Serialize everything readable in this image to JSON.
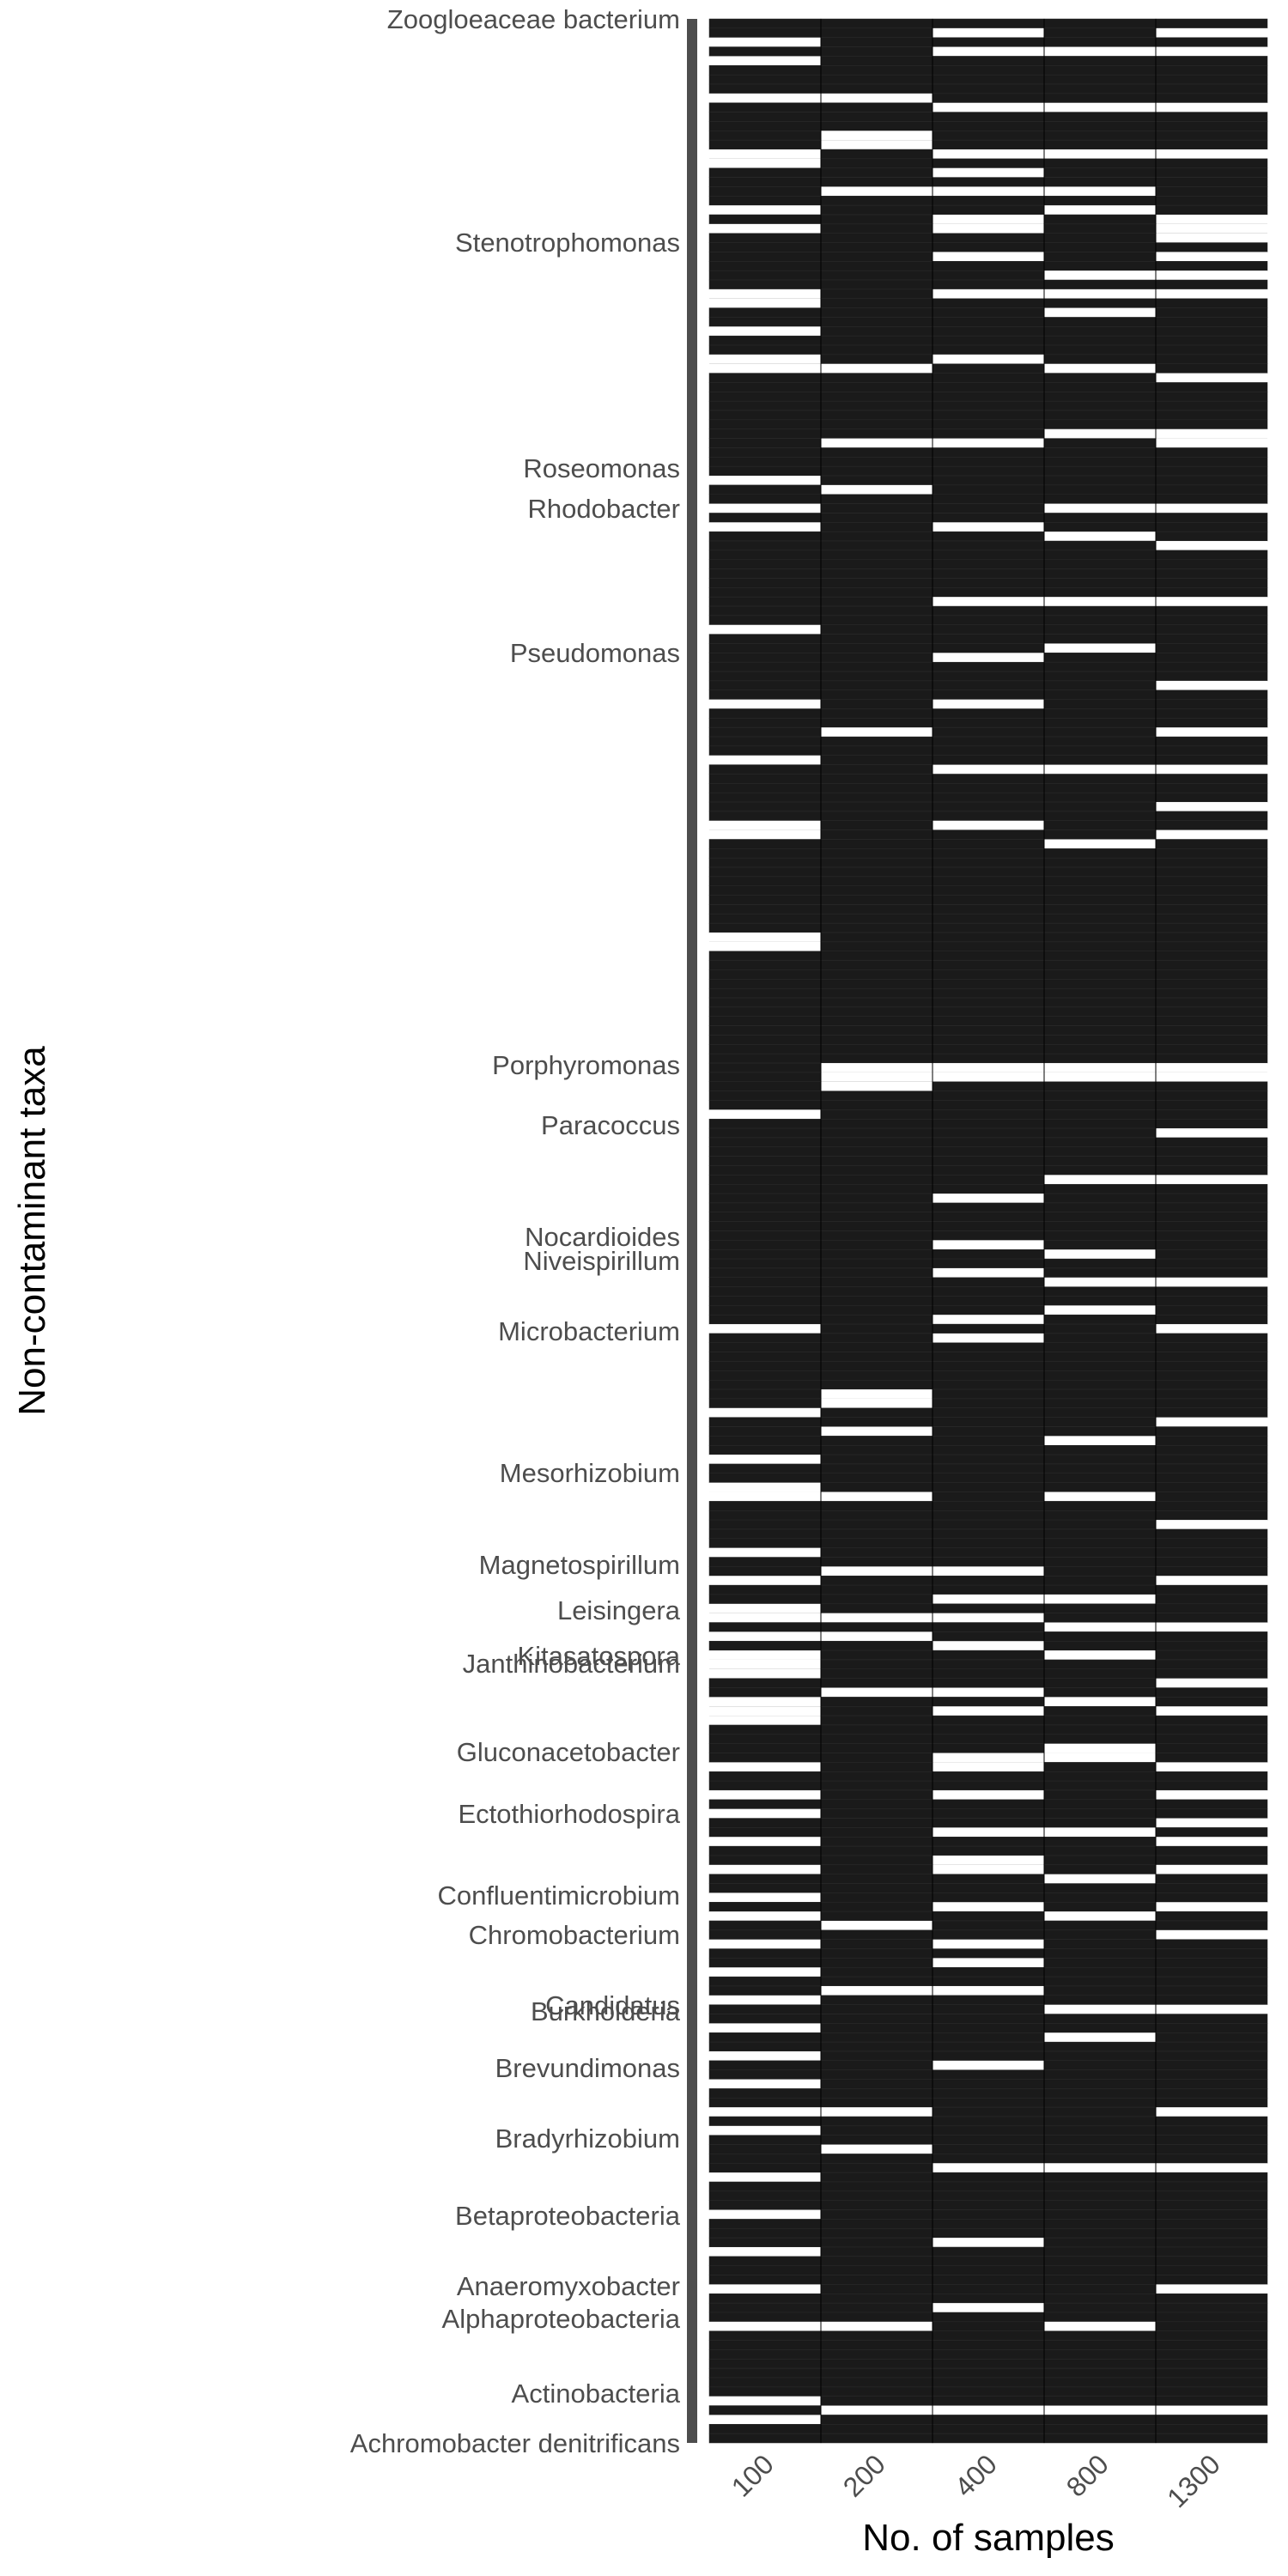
{
  "chart_data": {
    "type": "heatmap",
    "xlabel": "No. of samples",
    "ylabel": "Non-contaminant taxa",
    "categories": [
      "100",
      "200",
      "400",
      "800",
      "1300"
    ],
    "row_count": 260,
    "fill_colors": {
      "present": "#1a1a1a",
      "absent": "#ffffff",
      "cell_border": "#2e2e2e",
      "axis_bar": "#4d4d4d",
      "text": "#4d4d4d"
    },
    "legend": "none",
    "grid": false,
    "absent_rows_by_category": {
      "100": [
        2,
        4,
        8,
        14,
        15,
        20,
        22,
        29,
        30,
        33,
        36,
        37,
        49,
        52,
        54,
        65,
        73,
        79,
        86,
        87,
        98,
        99,
        117,
        140,
        149,
        154,
        157,
        158,
        164,
        167,
        170,
        171,
        173,
        175,
        176,
        177,
        180,
        181,
        182,
        187,
        190,
        192,
        195,
        198,
        201,
        203,
        206,
        209,
        212,
        215,
        218,
        221,
        224,
        226,
        231,
        235,
        239,
        243,
        247,
        255,
        257
      ],
      "200": [
        8,
        12,
        13,
        18,
        37,
        45,
        50,
        76,
        112,
        113,
        114,
        147,
        148,
        151,
        158,
        166,
        171,
        173,
        179,
        204,
        211,
        224,
        228,
        247,
        256
      ],
      "400": [
        1,
        3,
        9,
        14,
        16,
        18,
        21,
        22,
        25,
        29,
        36,
        45,
        54,
        62,
        68,
        73,
        80,
        86,
        112,
        113,
        126,
        131,
        134,
        139,
        141,
        166,
        169,
        171,
        174,
        179,
        181,
        186,
        187,
        190,
        194,
        197,
        198,
        202,
        206,
        208,
        211,
        219,
        230,
        238,
        245,
        256
      ],
      "800": [
        3,
        9,
        14,
        18,
        20,
        27,
        29,
        31,
        37,
        44,
        52,
        55,
        62,
        67,
        80,
        88,
        112,
        113,
        124,
        132,
        135,
        138,
        152,
        158,
        169,
        172,
        175,
        180,
        185,
        186,
        194,
        199,
        203,
        213,
        216,
        230,
        247,
        256
      ],
      "1300": [
        1,
        3,
        9,
        14,
        21,
        22,
        23,
        25,
        27,
        29,
        38,
        44,
        45,
        52,
        56,
        62,
        71,
        76,
        80,
        84,
        87,
        112,
        113,
        119,
        124,
        135,
        140,
        150,
        161,
        167,
        172,
        178,
        181,
        187,
        190,
        193,
        195,
        198,
        202,
        205,
        213,
        224,
        230,
        243,
        256
      ]
    },
    "row_labels_left_to_right_visible_sample": [
      "Zoogloeaceae bacterium",
      "Stenotrophomonas",
      "Roseomonas",
      "Rhodobacter",
      "Pseudomonas",
      "Porphyromonas",
      "Paracoccus",
      "Nocardioides",
      "Niveispirillum",
      "Microbacterium",
      "Mesorhizobium",
      "Magnetospirillum",
      "Leisingera",
      "Kitasatospora",
      "Janthinobacterium",
      "Gluconacetobacter",
      "Ectothiorhodospira",
      "Confluentimicrobium",
      "Chromobacterium",
      "Candidatus",
      "Burkholderia",
      "Brevundimonas",
      "Bradyrhizobium",
      "Betaproteobacteria",
      "Anaeromyxobacter",
      "Alphaproteobacteria",
      "Actinobacteria",
      "Achromobacter denitrificans"
    ]
  }
}
